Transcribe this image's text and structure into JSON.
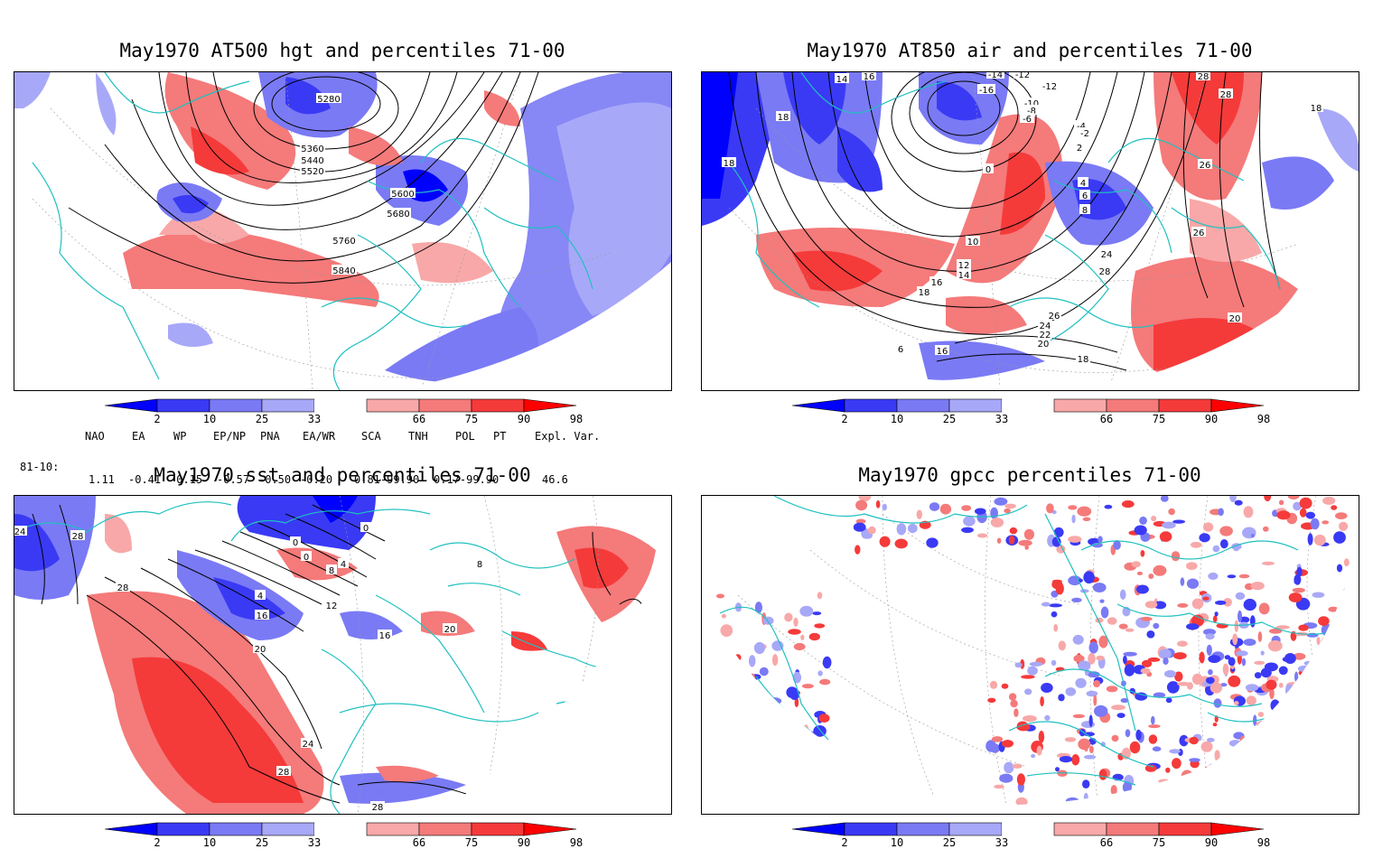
{
  "colors": {
    "blue_dark": "#0000ff",
    "blue_mid": "#3a3af5",
    "blue_light": "#7a7af5",
    "blue_pale": "#a8a8f8",
    "red_pale": "#f8a8a8",
    "red_light": "#f57a7a",
    "red_mid": "#f53a3a",
    "red_dark": "#ff0000",
    "coast": "#20c0c0",
    "contour": "#000000"
  },
  "panels": [
    {
      "title": "May1970 AT500 hgt and percentiles 71-00",
      "contour_labels": [
        "5280",
        "5360",
        "5440",
        "5520",
        "5600",
        "5680",
        "5760",
        "5840"
      ]
    },
    {
      "title": "May1970 AT850 air and percentiles 71-00",
      "contour_labels": [
        "14",
        "16",
        "18",
        "18",
        "-14",
        "-12",
        "-16",
        "-12",
        "-10",
        "-8",
        "-6",
        "-4",
        "-2",
        "2",
        "0",
        "4",
        "6",
        "8",
        "10",
        "12",
        "14",
        "16",
        "18",
        "26",
        "28",
        "18",
        "26",
        "24",
        "28",
        "26",
        "24",
        "22",
        "20",
        "18",
        "16",
        "6",
        "20",
        "28"
      ]
    },
    {
      "title": "May1970 sst and percentiles 71-00",
      "contour_labels": [
        "24",
        "28",
        "28",
        "0",
        "0",
        "4",
        "8",
        "0",
        "4",
        "12",
        "16",
        "20",
        "16",
        "20",
        "8",
        "24",
        "28",
        "28"
      ]
    },
    {
      "title": "May1970 gpcc percentiles 71-00",
      "contour_labels": []
    }
  ],
  "colorbar_ticks": [
    "2",
    "10",
    "25",
    "33",
    "66",
    "75",
    "90",
    "98"
  ],
  "indices": {
    "header": [
      "NAO",
      "EA",
      "WP",
      "EP/NP",
      "PNA",
      "EA/WR",
      "SCA",
      "TNH",
      "POL",
      "PT",
      "Expl. Var."
    ],
    "row_label": "81-10:",
    "values": [
      "1.11",
      "-0.41",
      "-0.15",
      "-0.57",
      "-0.50",
      "-0.20",
      "0.81-99.90",
      "0.17-99.90",
      "46.6"
    ]
  }
}
